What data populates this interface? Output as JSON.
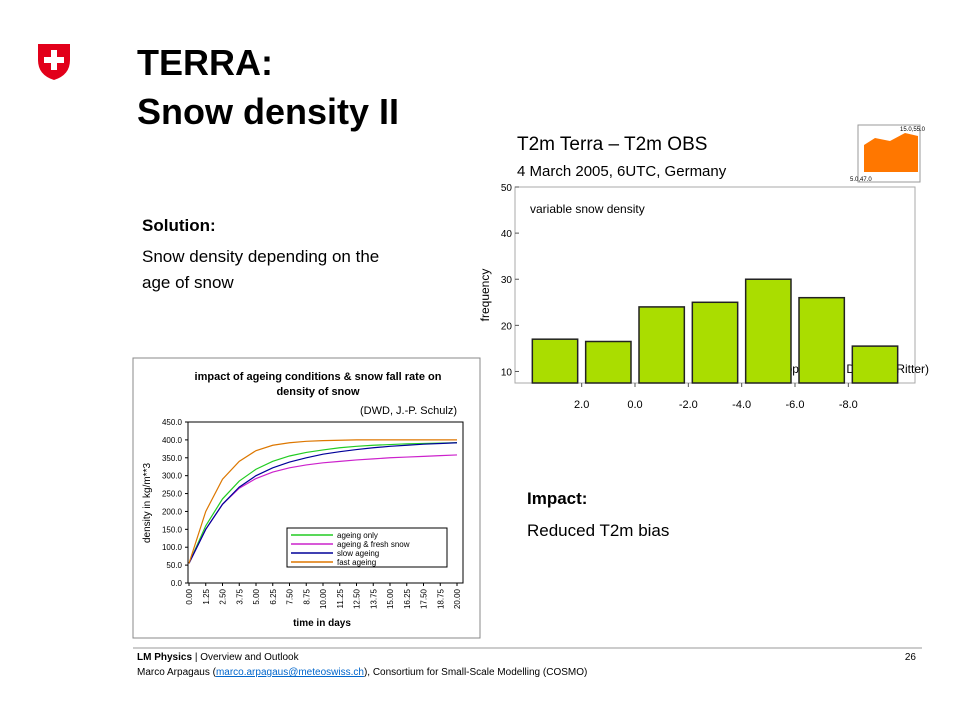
{
  "header": {
    "title_lines": [
      "TERRA:",
      "Snow density II"
    ]
  },
  "solution": {
    "heading": "Solution:",
    "text_lines": [
      "Snow density depending on the",
      "age of snow"
    ]
  },
  "impact": {
    "heading": "Impact:",
    "text": "Reduced T2m bias"
  },
  "histogram": {
    "type": "histogram",
    "title": "T2m Terra – T2m OBS",
    "subtitle": "4 March 2005, 6UTC, Germany",
    "annotation": "variable snow density",
    "y_label": "frequency",
    "credit": "(adopted from DWD, B. Ritter)",
    "color": "#aadd00",
    "bins": [
      4,
      2,
      0,
      -2,
      -4,
      -6,
      -8,
      -10
    ],
    "values": [
      17,
      16.5,
      24,
      25,
      30,
      26,
      15.5
    ],
    "xlim": [
      4.5,
      -10.5
    ],
    "xticks": [
      {
        "value": 2,
        "label": "2.0"
      },
      {
        "value": 0,
        "label": "0.0"
      },
      {
        "value": -2,
        "label": "-2.0"
      },
      {
        "value": -4,
        "label": "-4.0"
      },
      {
        "value": -6,
        "label": "-6.0"
      },
      {
        "value": -8,
        "label": "-8.0"
      }
    ],
    "ylim": [
      7.5,
      50
    ],
    "yticks": [
      10,
      20,
      30,
      40,
      50
    ],
    "inset_labels": [
      "15.0,55.0",
      "5.0,47.0"
    ]
  },
  "line_chart": {
    "type": "line",
    "title_lines": [
      "impact of ageing conditions & snow fall rate on",
      "density of snow"
    ],
    "credit": "(DWD, J.-P. Schulz)",
    "y_label": "density in kg/m**3",
    "x_label": "time in days",
    "x": [
      0,
      1.25,
      2.5,
      3.75,
      5,
      6.25,
      7.5,
      8.75,
      10,
      11.25,
      12.5,
      13.75,
      15,
      16.25,
      17.5,
      18.75,
      20
    ],
    "xlim": [
      0,
      20
    ],
    "xticks": [
      {
        "value": 0,
        "label": "0.00"
      },
      {
        "value": 1.25,
        "label": "1.25"
      },
      {
        "value": 2.5,
        "label": "2.50"
      },
      {
        "value": 3.75,
        "label": "3.75"
      },
      {
        "value": 5,
        "label": "5.00"
      },
      {
        "value": 6.25,
        "label": "6.25"
      },
      {
        "value": 7.5,
        "label": "7.50"
      },
      {
        "value": 8.75,
        "label": "8.75"
      },
      {
        "value": 10,
        "label": "10.00"
      },
      {
        "value": 11.25,
        "label": "11.25"
      },
      {
        "value": 12.5,
        "label": "12.50"
      },
      {
        "value": 13.75,
        "label": "13.75"
      },
      {
        "value": 15,
        "label": "15.00"
      },
      {
        "value": 16.25,
        "label": "16.25"
      },
      {
        "value": 17.5,
        "label": "17.50"
      },
      {
        "value": 18.75,
        "label": "18.75"
      },
      {
        "value": 20,
        "label": "20.00"
      }
    ],
    "ylim": [
      0,
      450
    ],
    "yticks": [
      {
        "value": 0,
        "label": "0.0"
      },
      {
        "value": 50,
        "label": "50.0"
      },
      {
        "value": 100,
        "label": "100.0"
      },
      {
        "value": 150,
        "label": "150.0"
      },
      {
        "value": 200,
        "label": "200.0"
      },
      {
        "value": 250,
        "label": "250.0"
      },
      {
        "value": 300,
        "label": "300.0"
      },
      {
        "value": 350,
        "label": "350.0"
      },
      {
        "value": 400,
        "label": "400.0"
      },
      {
        "value": 450,
        "label": "450.0"
      }
    ],
    "series": [
      {
        "name": "ageing only",
        "color": "#22cc22",
        "values": [
          55,
          160,
          235,
          285,
          318,
          340,
          355,
          365,
          372,
          378,
          382,
          385,
          387,
          389,
          390,
          391,
          392
        ]
      },
      {
        "name": "ageing & fresh snow",
        "color": "#cc22cc",
        "values": [
          55,
          150,
          220,
          265,
          292,
          310,
          322,
          330,
          336,
          340,
          344,
          347,
          350,
          352,
          354,
          356,
          358
        ]
      },
      {
        "name": "slow ageing",
        "color": "#000099",
        "values": [
          55,
          150,
          220,
          268,
          300,
          322,
          338,
          350,
          360,
          367,
          373,
          378,
          382,
          385,
          388,
          390,
          392
        ]
      },
      {
        "name": "fast ageing",
        "color": "#dd7700",
        "values": [
          55,
          200,
          290,
          340,
          370,
          385,
          392,
          396,
          398,
          399,
          400,
          400,
          400,
          400,
          400,
          400,
          400
        ]
      }
    ]
  },
  "footer": {
    "org": "LM Physics",
    "section": "| Overview and Outlook",
    "author_prefix": "Marco Arpagaus (",
    "email": "marco.arpagaus@meteoswiss.ch",
    "author_suffix": "), Consortium for Small-Scale Modelling (COSMO)",
    "page": "26"
  }
}
